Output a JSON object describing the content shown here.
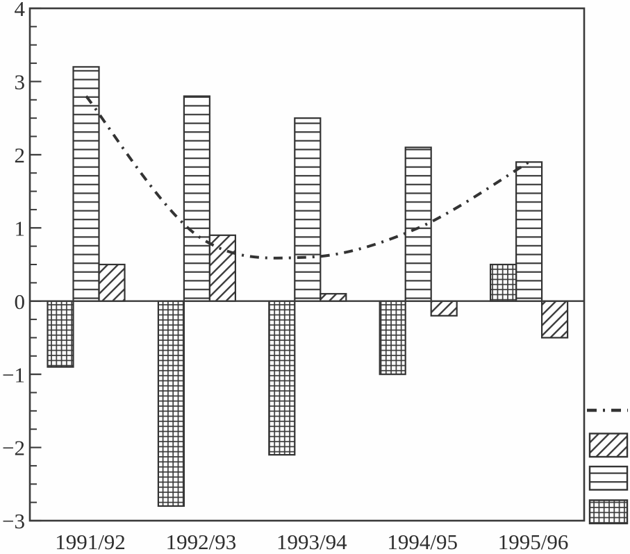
{
  "chart_data": {
    "type": "bar",
    "title": "",
    "xlabel": "",
    "ylabel": "",
    "categories": [
      "1991/92",
      "1992/93",
      "1993/94",
      "1994/95",
      "1995/96"
    ],
    "series": [
      {
        "name": "crosshatch",
        "pattern": "crosshatch",
        "values": [
          -0.9,
          -2.8,
          -2.1,
          -1.0,
          0.5
        ]
      },
      {
        "name": "horizontal-stripes",
        "pattern": "horizontal-stripes",
        "values": [
          3.2,
          2.8,
          2.5,
          2.1,
          1.9
        ]
      },
      {
        "name": "diagonal-hatch",
        "pattern": "diagonal-hatch",
        "values": [
          0.5,
          0.9,
          0.1,
          -0.2,
          -0.5
        ]
      }
    ],
    "line_series": {
      "name": "dash-dot-line",
      "style": "dash-dot",
      "values": [
        2.8,
        0.9,
        0.6,
        1.0,
        1.9
      ]
    },
    "ylim": [
      -3,
      4
    ],
    "y_major_ticks": [
      4,
      3,
      2,
      1,
      0,
      -1,
      -2,
      -3
    ],
    "y_tick_labels": [
      "4",
      "3",
      "2",
      "1",
      "0",
      "−1",
      "−2",
      "−3"
    ],
    "y_minor_tick_step": 0.25,
    "grid": false,
    "legend": {
      "position": "right-outside",
      "entries": [
        {
          "type": "line",
          "style": "dash-dot"
        },
        {
          "type": "patch",
          "pattern": "diagonal-hatch"
        },
        {
          "type": "patch",
          "pattern": "horizontal-stripes"
        },
        {
          "type": "patch",
          "pattern": "crosshatch"
        }
      ]
    }
  },
  "colors": {
    "ink": "#3a3a3a",
    "text": "#2e2e2e",
    "background": "#fefefe"
  }
}
